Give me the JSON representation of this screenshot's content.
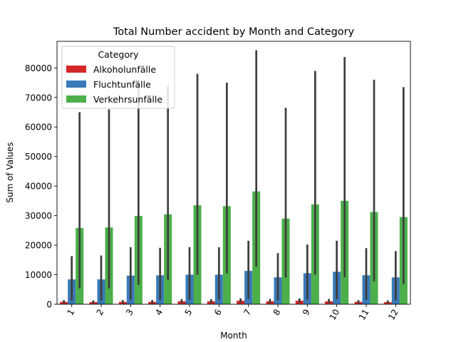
{
  "chart_data": {
    "type": "bar",
    "title": "Total Number accident  by Month and Category",
    "xlabel": "Month",
    "ylabel": "Sum of Values",
    "categories": [
      "1",
      "2",
      "3",
      "4",
      "5",
      "6",
      "7",
      "8",
      "9",
      "10",
      "11",
      "12"
    ],
    "ylim": [
      0,
      89000
    ],
    "yticks": [
      0,
      10000,
      20000,
      30000,
      40000,
      50000,
      60000,
      70000,
      80000
    ],
    "ytick_labels": [
      "0",
      "10000",
      "20000",
      "30000",
      "40000",
      "50000",
      "60000",
      "70000",
      "80000"
    ],
    "grid": false,
    "legend": {
      "title": "Category",
      "position": "top-left"
    },
    "series": [
      {
        "name": "Alkoholunfälle",
        "color": "#d62728",
        "values": [
          800,
          750,
          800,
          800,
          1000,
          1000,
          1200,
          1000,
          1200,
          1000,
          800,
          700
        ],
        "ci_low": [
          300,
          300,
          300,
          300,
          400,
          400,
          500,
          400,
          500,
          400,
          300,
          300
        ],
        "ci_high": [
          1400,
          1300,
          1400,
          1400,
          1700,
          1700,
          2000,
          1800,
          2000,
          1800,
          1400,
          1300
        ]
      },
      {
        "name": "Fluchtunfälle",
        "color": "#3a7ab8",
        "values": [
          8400,
          8400,
          9700,
          9800,
          10000,
          10000,
          11300,
          9100,
          10500,
          11000,
          9800,
          9100
        ],
        "ci_low": [
          1200,
          1200,
          1500,
          1500,
          1500,
          1500,
          1800,
          1400,
          1600,
          1700,
          1500,
          1400
        ],
        "ci_high": [
          16300,
          16500,
          19300,
          19100,
          19300,
          19300,
          21500,
          17300,
          20200,
          21500,
          19000,
          18000
        ]
      },
      {
        "name": "Verkehrsunfälle",
        "color": "#4caf4a",
        "values": [
          25800,
          26000,
          29900,
          30400,
          33500,
          33200,
          38200,
          29000,
          33800,
          35000,
          31200,
          29500
        ],
        "ci_low": [
          5300,
          5300,
          6600,
          8300,
          10000,
          10500,
          12700,
          9000,
          10000,
          9100,
          7800,
          6800
        ],
        "ci_high": [
          65000,
          66000,
          75000,
          74000,
          78000,
          75000,
          86000,
          66500,
          79000,
          83700,
          76000,
          73500
        ]
      }
    ]
  }
}
